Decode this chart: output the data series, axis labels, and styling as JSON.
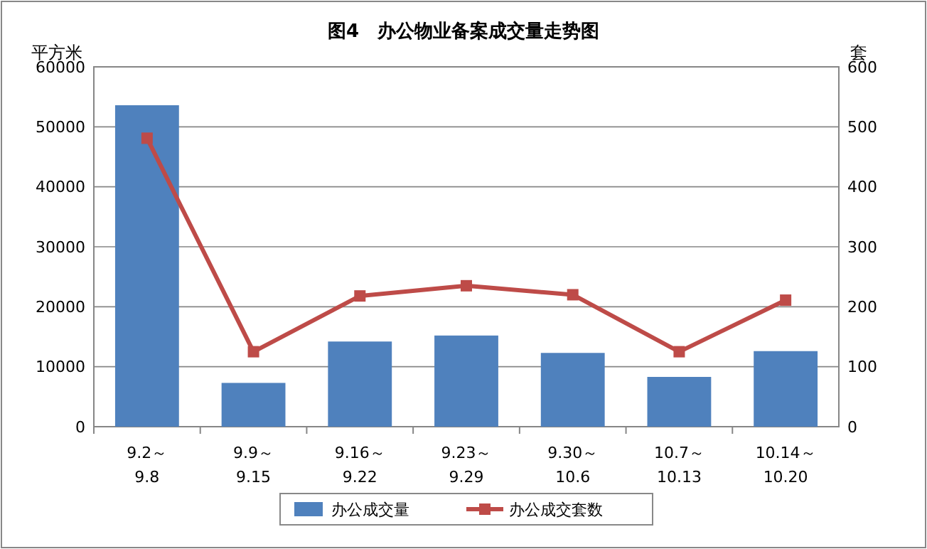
{
  "chart_data": {
    "type": "bar",
    "title": "图4　办公物业备案成交量走势图",
    "ylabel": "平方米",
    "y2label": "套",
    "categories": [
      "9.2～\n9.8",
      "9.9～\n9.15",
      "9.16～\n9.22",
      "9.23～\n9.29",
      "9.30～\n10.6",
      "10.7～\n10.13",
      "10.14～\n10.20"
    ],
    "series": [
      {
        "name": "办公成交量",
        "color": "#4f81bd",
        "values": [
          53600,
          7300,
          14200,
          15200,
          12300,
          8300,
          12600
        ]
      },
      {
        "name": "办公成交套数",
        "type": "line",
        "axis": "y2",
        "color": "#be4b48",
        "marker": "square",
        "values": [
          481,
          125,
          218,
          235,
          220,
          125,
          211
        ]
      }
    ],
    "ylim": [
      0,
      60000
    ],
    "yticks": [
      0,
      10000,
      20000,
      30000,
      40000,
      50000,
      60000
    ],
    "y2lim": [
      0,
      600
    ],
    "y2ticks": [
      0,
      100,
      200,
      300,
      400,
      500,
      600
    ],
    "grid": "y",
    "legend": "bottom"
  }
}
